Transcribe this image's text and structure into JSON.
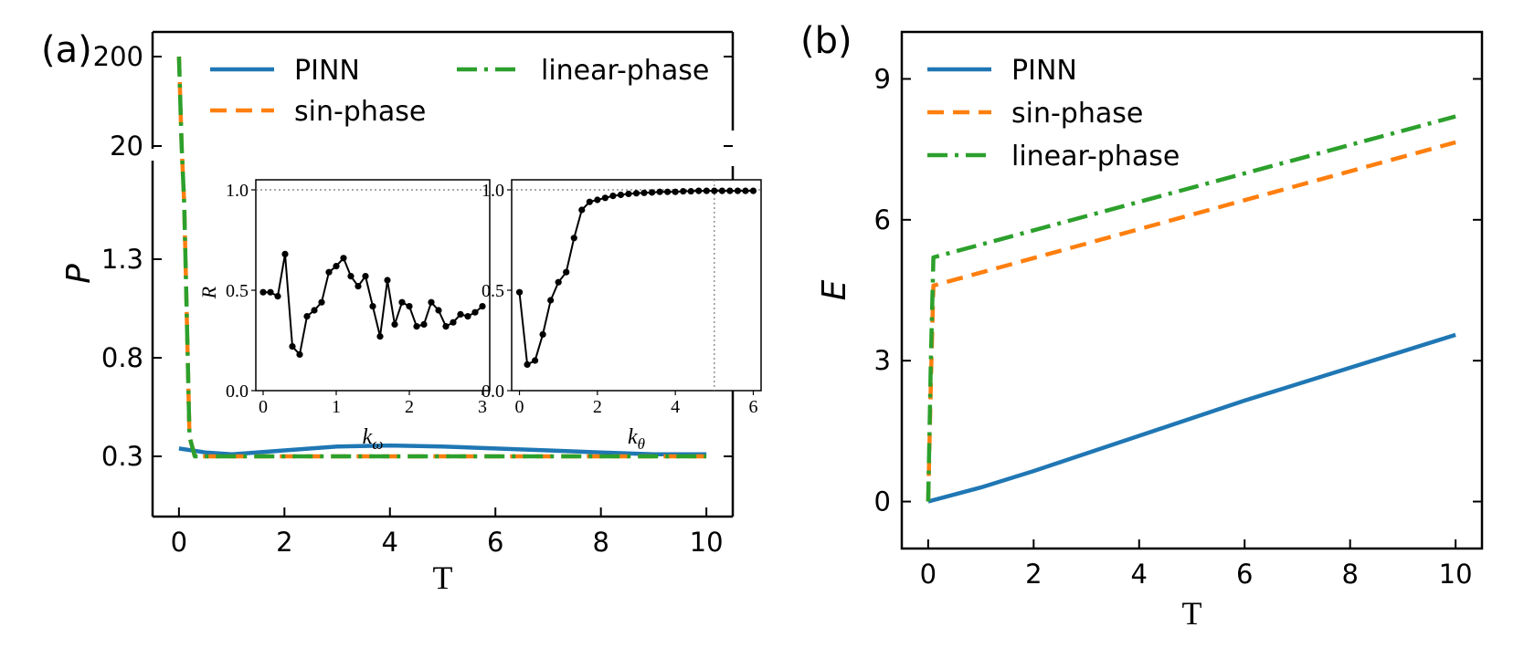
{
  "chart_data": [
    {
      "panel": "(a)",
      "type": "line",
      "xlabel": "T",
      "ylabel": "P",
      "xlim": [
        -0.5,
        10.5
      ],
      "xticks": [
        "0",
        "2",
        "4",
        "6",
        "8",
        "10"
      ],
      "yticks": [
        "0.3",
        "0.8",
        "1.3",
        "20",
        "200"
      ],
      "broken_y_axis": true,
      "legend_position": "top, two columns",
      "series": [
        {
          "name": "PINN",
          "color": "#1f77b4",
          "style": "solid",
          "x": [
            0,
            0.5,
            1,
            2,
            3,
            4,
            5,
            6,
            7,
            8,
            9,
            10
          ],
          "y": [
            0.34,
            0.32,
            0.31,
            0.33,
            0.35,
            0.355,
            0.35,
            0.34,
            0.33,
            0.32,
            0.31,
            0.31
          ]
        },
        {
          "name": "sin-phase",
          "color": "#ff7f0e",
          "style": "dashed",
          "x": [
            0,
            0.05,
            0.1,
            0.15,
            0.2,
            0.3,
            1,
            10
          ],
          "y": [
            200,
            20,
            5,
            1.0,
            0.4,
            0.3,
            0.3,
            0.3
          ]
        },
        {
          "name": "linear-phase",
          "color": "#2ca02c",
          "style": "dashdot",
          "x": [
            0,
            0.05,
            0.1,
            0.15,
            0.2,
            0.3,
            1,
            10
          ],
          "y": [
            200,
            20,
            5,
            1.0,
            0.4,
            0.3,
            0.3,
            0.3
          ]
        }
      ]
    },
    {
      "panel": "inset-1",
      "type": "line",
      "xlabel": "kω",
      "ylabel": "R",
      "xlim": [
        -0.1,
        3.1
      ],
      "ylim": [
        0,
        1.05
      ],
      "xticks": [
        "0",
        "1",
        "2",
        "3"
      ],
      "yticks": [
        "0.0",
        "0.5",
        "1.0"
      ],
      "reference_line_y": 1.0,
      "series": [
        {
          "name": "",
          "color": "#000000",
          "style": "solid-markers",
          "x": [
            0,
            0.1,
            0.2,
            0.3,
            0.4,
            0.5,
            0.6,
            0.7,
            0.8,
            0.9,
            1.0,
            1.1,
            1.2,
            1.3,
            1.4,
            1.5,
            1.6,
            1.7,
            1.8,
            1.9,
            2.0,
            2.1,
            2.2,
            2.3,
            2.4,
            2.5,
            2.6,
            2.7,
            2.8,
            2.9,
            3.0
          ],
          "y": [
            0.49,
            0.49,
            0.47,
            0.68,
            0.22,
            0.18,
            0.37,
            0.4,
            0.44,
            0.59,
            0.62,
            0.66,
            0.57,
            0.52,
            0.57,
            0.42,
            0.27,
            0.55,
            0.33,
            0.44,
            0.42,
            0.32,
            0.33,
            0.44,
            0.4,
            0.32,
            0.34,
            0.38,
            0.37,
            0.39,
            0.42
          ]
        }
      ]
    },
    {
      "panel": "inset-2",
      "type": "line",
      "xlabel": "kθ",
      "ylabel": "",
      "xlim": [
        -0.2,
        6.2
      ],
      "ylim": [
        0,
        1.05
      ],
      "xticks": [
        "0",
        "2",
        "4",
        "6"
      ],
      "yticks": [
        "0.0",
        "0.5",
        "1.0"
      ],
      "reference_line_y": 1.0,
      "reference_line_x": 5,
      "series": [
        {
          "name": "",
          "color": "#000000",
          "style": "solid-markers",
          "x": [
            0,
            0.2,
            0.4,
            0.6,
            0.8,
            1.0,
            1.2,
            1.4,
            1.6,
            1.8,
            2.0,
            2.2,
            2.4,
            2.6,
            2.8,
            3.0,
            3.2,
            3.4,
            3.6,
            3.8,
            4.0,
            4.2,
            4.4,
            4.6,
            4.8,
            5.0,
            5.2,
            5.4,
            5.6,
            5.8,
            6.0
          ],
          "y": [
            0.49,
            0.13,
            0.15,
            0.28,
            0.45,
            0.54,
            0.59,
            0.76,
            0.9,
            0.94,
            0.95,
            0.96,
            0.97,
            0.975,
            0.98,
            0.983,
            0.985,
            0.987,
            0.99,
            0.99,
            0.99,
            0.993,
            0.993,
            0.995,
            0.995,
            0.995,
            0.995,
            0.995,
            0.995,
            0.995,
            0.995
          ]
        }
      ]
    },
    {
      "panel": "(b)",
      "type": "line",
      "xlabel": "T",
      "ylabel": "E",
      "xlim": [
        -0.5,
        10.5
      ],
      "ylim": [
        -1,
        10
      ],
      "xticks": [
        "0",
        "2",
        "4",
        "6",
        "8",
        "10"
      ],
      "yticks": [
        "0",
        "3",
        "6",
        "9"
      ],
      "legend_position": "top-left",
      "series": [
        {
          "name": "PINN",
          "color": "#1f77b4",
          "style": "solid",
          "x": [
            0,
            1,
            2,
            4,
            6,
            8,
            10
          ],
          "y": [
            0,
            0.3,
            0.65,
            1.4,
            2.15,
            2.85,
            3.55
          ]
        },
        {
          "name": "sin-phase",
          "color": "#ff7f0e",
          "style": "dashed",
          "x": [
            0,
            0.05,
            0.1,
            10
          ],
          "y": [
            0,
            2.5,
            4.6,
            7.65
          ]
        },
        {
          "name": "linear-phase",
          "color": "#2ca02c",
          "style": "dashdot",
          "x": [
            0,
            0.05,
            0.1,
            10
          ],
          "y": [
            0,
            3.0,
            5.2,
            8.2
          ]
        }
      ]
    }
  ]
}
